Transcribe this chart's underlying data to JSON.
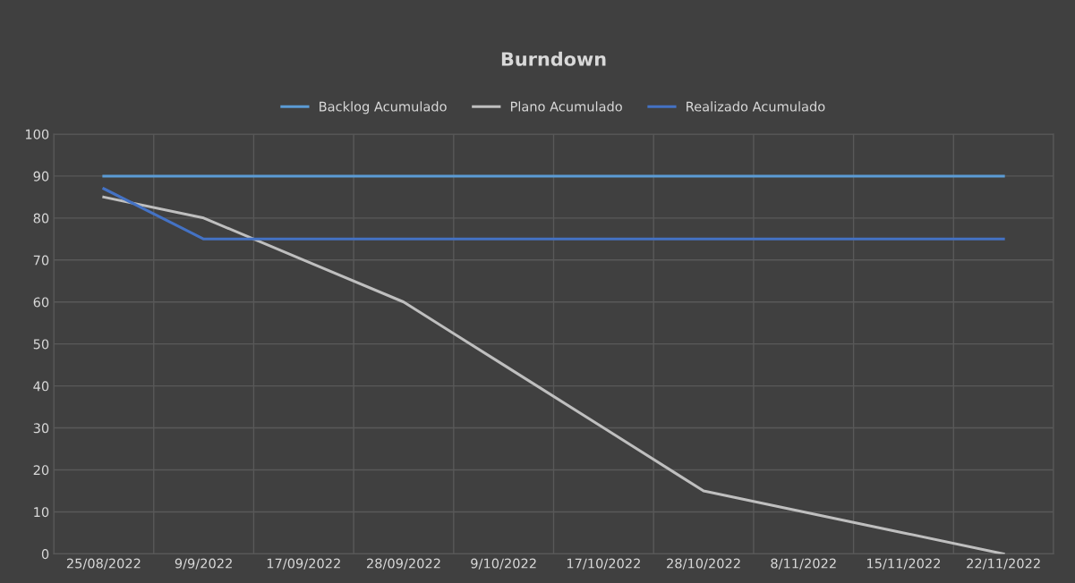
{
  "chart_data": {
    "type": "line",
    "title": "Burndown",
    "categories": [
      "25/08/2022",
      "9/9/2022",
      "17/09/2022",
      "28/09/2022",
      "9/10/2022",
      "17/10/2022",
      "28/10/2022",
      "8/11/2022",
      "15/11/2022",
      "22/11/2022"
    ],
    "series": [
      {
        "name": "Backlog Acumulado",
        "color": "#5b9bd5",
        "values": [
          90,
          90,
          90,
          90,
          90,
          90,
          90,
          90,
          90,
          90
        ]
      },
      {
        "name": "Plano Acumulado",
        "color": "#bfbfbf",
        "values": [
          85,
          80,
          70,
          60,
          45,
          30,
          15,
          10,
          5,
          0
        ]
      },
      {
        "name": "Realizado Acumulado",
        "color": "#4472c4",
        "values": [
          87,
          75,
          75,
          75,
          75,
          75,
          75,
          75,
          75,
          75
        ]
      }
    ],
    "ylim": [
      0,
      100
    ],
    "yticks": [
      0,
      10,
      20,
      30,
      40,
      50,
      60,
      70,
      80,
      90,
      100
    ],
    "grid": true,
    "legend": "top",
    "marker": "none",
    "line_style": "solid"
  }
}
